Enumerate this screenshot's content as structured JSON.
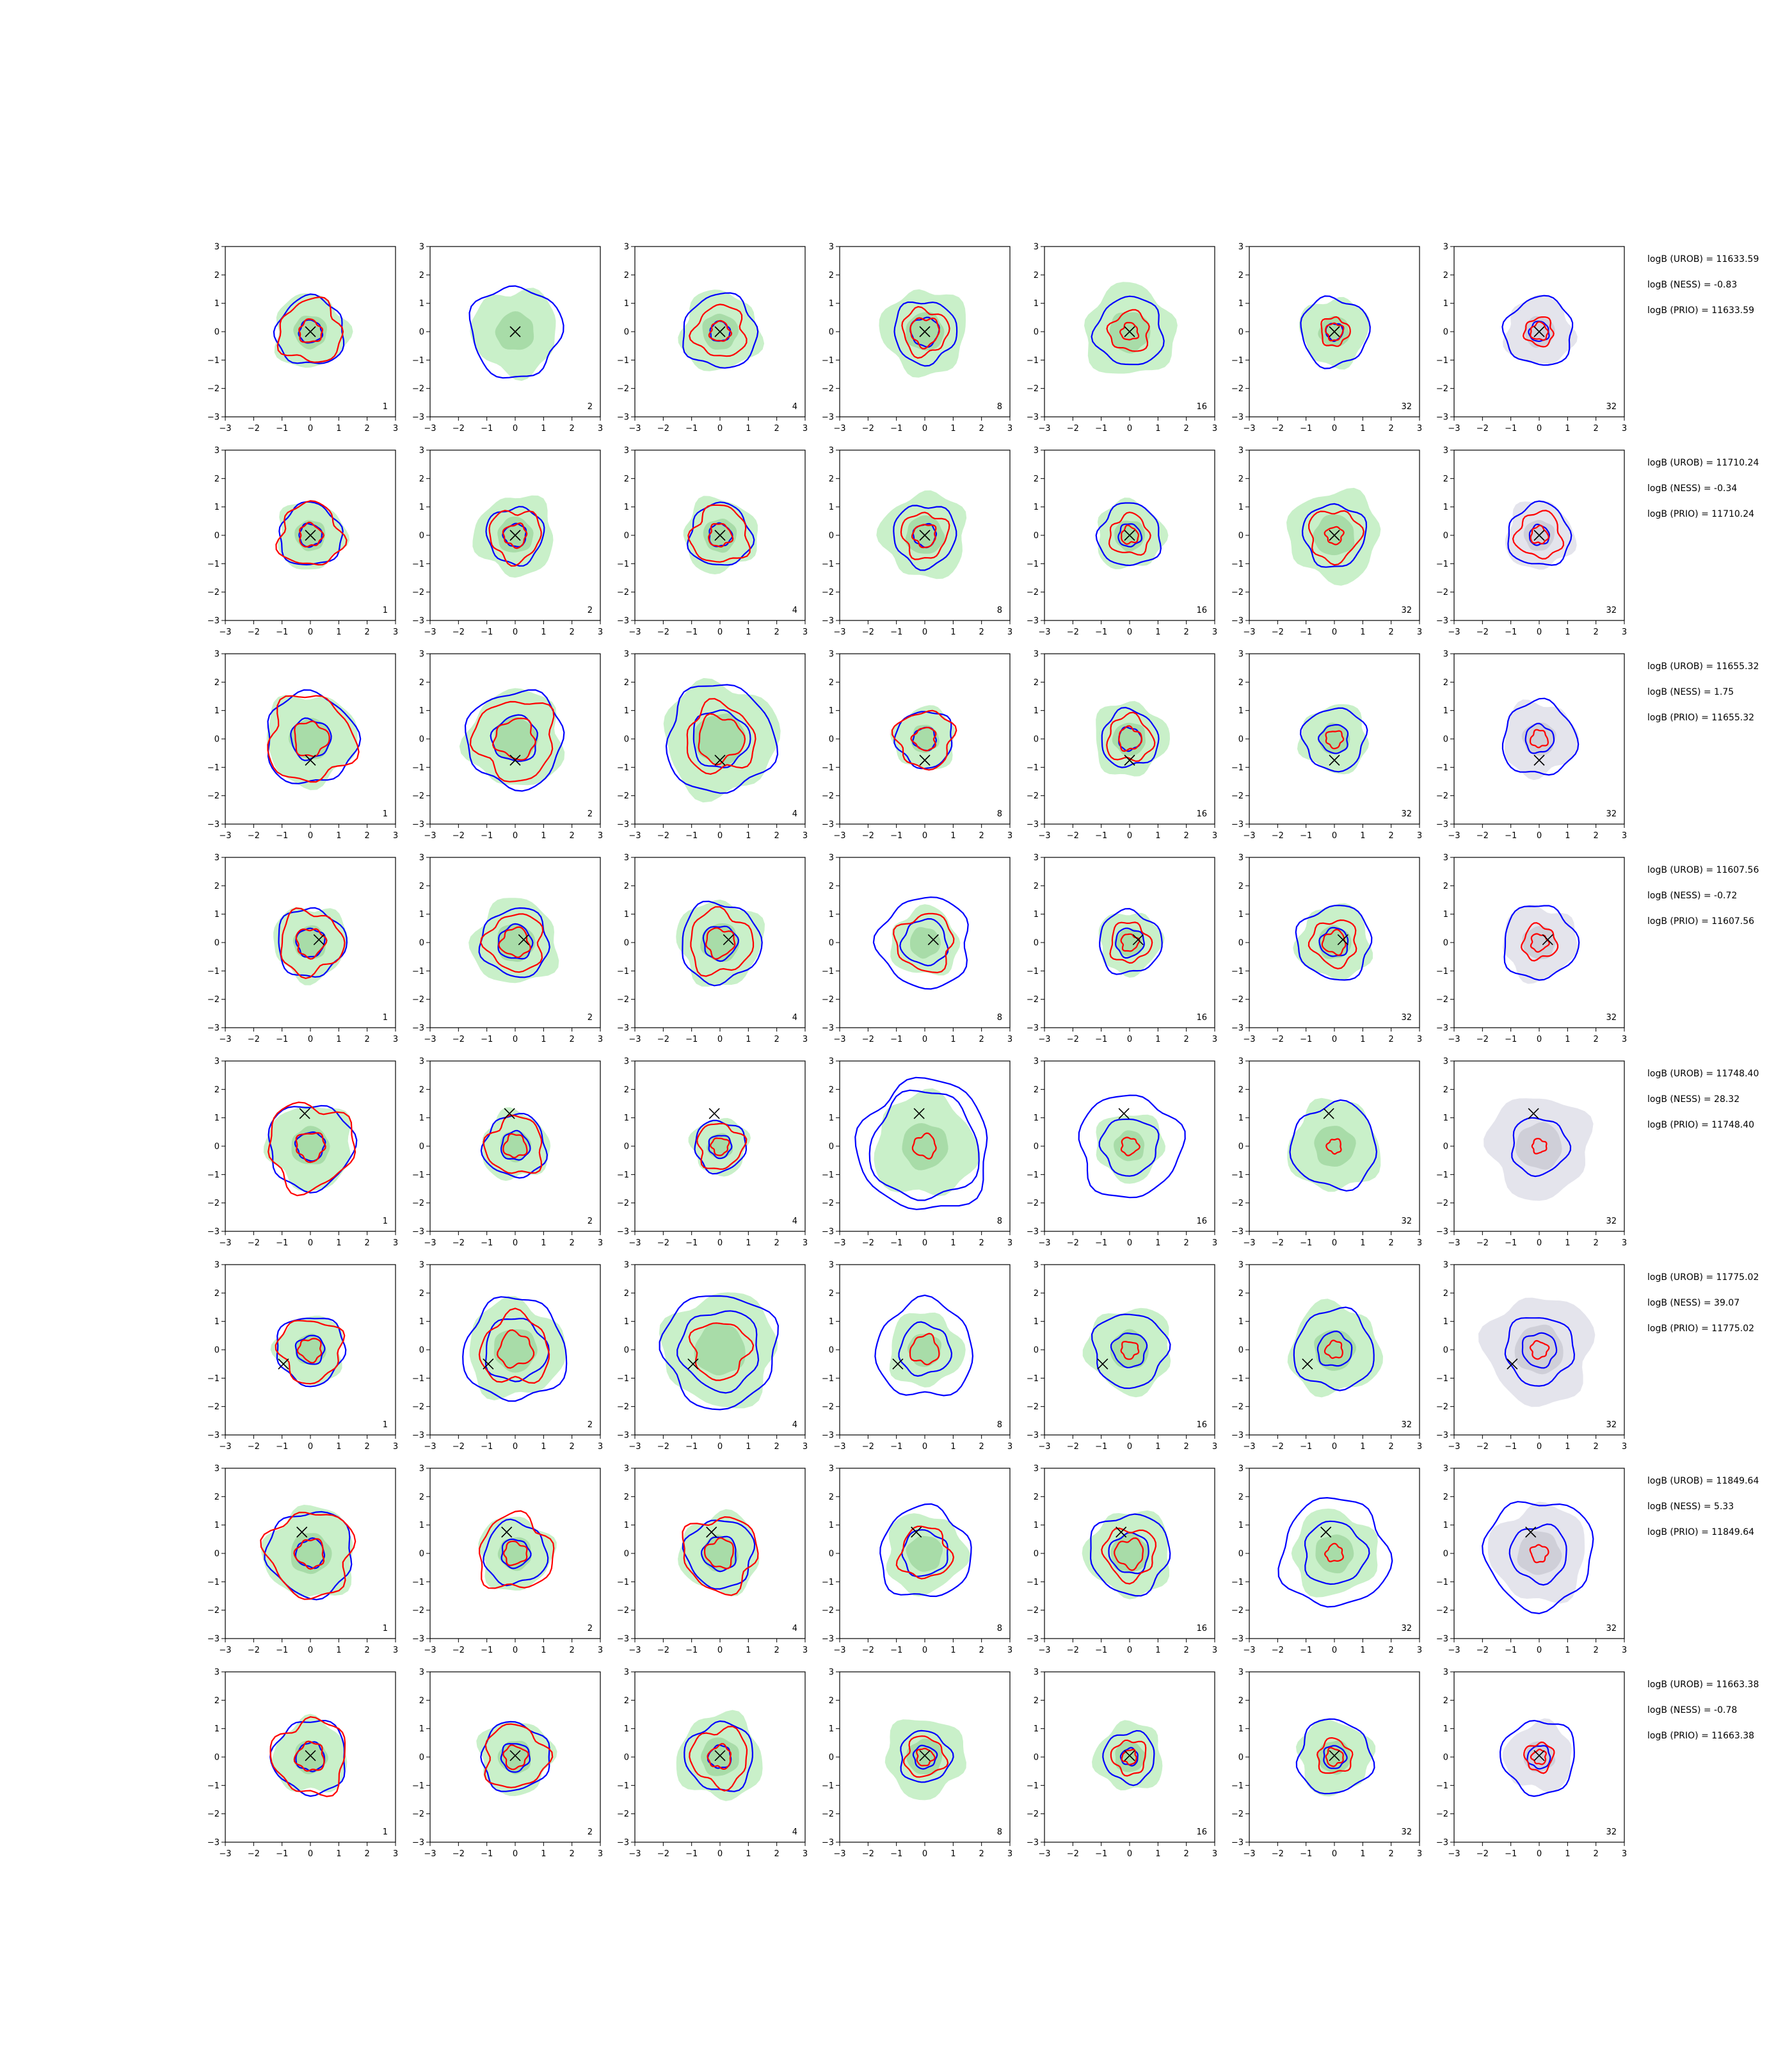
{
  "colors": {
    "background": "#ffffff",
    "axis": "#000000",
    "blue_contour": "#0000ff",
    "red_contour": "#ff0000",
    "green_fill": "#c9f0c9",
    "green_core": "#a8dca8",
    "grey_fill": "#e4e4ec",
    "grey_core": "#cfcfd8",
    "marker": "#000000"
  },
  "icons": {
    "marker": "x-marker-icon"
  },
  "chart_data": {
    "type": "contour-grid",
    "rows": 8,
    "cols": 7,
    "xlim": [
      -3,
      3
    ],
    "ylim": [
      -3,
      3
    ],
    "xticks": [
      "−3",
      "−2",
      "−1",
      "0",
      "1",
      "2",
      "3"
    ],
    "yticks": [
      "3",
      "2",
      "1",
      "0",
      "−1",
      "−2",
      "−3"
    ],
    "grid": false,
    "panel_labels": [
      "1",
      "2",
      "4",
      "8",
      "16",
      "32",
      "32"
    ],
    "last_column_fill": "grey",
    "row_annotations": [
      {
        "urob": "logB (UROB) = 11633.59",
        "ness": "logB (NESS) = -0.83",
        "prio": "logB (PRIO) = 11633.59"
      },
      {
        "urob": "logB (UROB) = 11710.24",
        "ness": "logB (NESS) = -0.34",
        "prio": "logB (PRIO) = 11710.24"
      },
      {
        "urob": "logB (UROB) = 11655.32",
        "ness": "logB (NESS) = 1.75",
        "prio": "logB (PRIO) = 11655.32"
      },
      {
        "urob": "logB (UROB) = 11607.56",
        "ness": "logB (NESS) = -0.72",
        "prio": "logB (PRIO) = 11607.56"
      },
      {
        "urob": "logB (UROB) = 11748.40",
        "ness": "logB (NESS) = 28.32",
        "prio": "logB (PRIO) = 11748.40"
      },
      {
        "urob": "logB (UROB) = 11775.02",
        "ness": "logB (NESS) = 39.07",
        "prio": "logB (PRIO) = 11775.02"
      },
      {
        "urob": "logB (UROB) = 11849.64",
        "ness": "logB (NESS) = 5.33",
        "prio": "logB (PRIO) = 11849.64"
      },
      {
        "urob": "logB (UROB) = 11663.38",
        "ness": "logB (NESS) = -0.78",
        "prio": "logB (PRIO) = 11663.38"
      }
    ],
    "row_markers": [
      {
        "x": 0.0,
        "y": 0.0
      },
      {
        "x": 0.0,
        "y": 0.0
      },
      {
        "x": 0.0,
        "y": -0.75
      },
      {
        "x": 0.3,
        "y": 0.1
      },
      {
        "x": -0.2,
        "y": 1.15
      },
      {
        "x": -0.95,
        "y": -0.5
      },
      {
        "x": -0.3,
        "y": 0.75
      },
      {
        "x": 0.0,
        "y": 0.05
      }
    ],
    "approx_contour_radii": [
      [
        {
          "green": 1.3,
          "blue": [
            1.2,
            0.4
          ],
          "red": [
            1.1,
            0.4
          ]
        },
        {
          "green": 1.5,
          "blue": [
            1.6
          ],
          "red": []
        },
        {
          "green": 1.4,
          "blue": [
            1.3,
            0.35
          ],
          "red": [
            0.9,
            0.35
          ]
        },
        {
          "green": 1.5,
          "blue": [
            1.1,
            0.5
          ],
          "red": [
            0.8,
            0.5
          ]
        },
        {
          "green": 1.6,
          "blue": [
            1.2
          ],
          "red": [
            0.7,
            0.3
          ]
        },
        {
          "green": 1.2,
          "blue": [
            1.2,
            0.3
          ],
          "red": [
            0.5,
            0.3
          ]
        },
        {
          "green": 1.2,
          "blue": [
            1.2,
            0.35
          ],
          "red": [
            0.5,
            0.3
          ]
        }
      ],
      [
        {
          "green": 1.2,
          "blue": [
            1.1,
            0.4
          ],
          "red": [
            1.1,
            0.4
          ]
        },
        {
          "green": 1.4,
          "blue": [
            1.0,
            0.4
          ],
          "red": [
            0.9,
            0.4
          ]
        },
        {
          "green": 1.3,
          "blue": [
            1.1,
            0.4
          ],
          "red": [
            1.0,
            0.4
          ]
        },
        {
          "green": 1.5,
          "blue": [
            1.1,
            0.4
          ],
          "red": [
            0.8,
            0.4
          ]
        },
        {
          "green": 1.2,
          "blue": [
            1.1,
            0.4
          ],
          "red": [
            0.7,
            0.3
          ]
        },
        {
          "green": 1.6,
          "blue": [
            1.1
          ],
          "red": [
            0.9,
            0.3
          ]
        },
        {
          "green": 1.2,
          "blue": [
            1.1,
            0.35
          ],
          "red": [
            0.8,
            0.3
          ]
        }
      ],
      [
        {
          "green": 1.6,
          "blue": [
            1.6,
            0.7
          ],
          "red": [
            1.5,
            0.6
          ]
        },
        {
          "green": 1.7,
          "blue": [
            1.7,
            0.8
          ],
          "red": [
            1.4,
            0.7
          ]
        },
        {
          "green": 2.0,
          "blue": [
            1.9,
            1.0
          ],
          "red": [
            1.2,
            0.8
          ]
        },
        {
          "green": 1.1,
          "blue": [
            1.0,
            0.4
          ],
          "red": [
            1.0,
            0.4
          ]
        },
        {
          "green": 1.3,
          "blue": [
            1.0,
            0.4
          ],
          "red": [
            0.8,
            0.4
          ]
        },
        {
          "green": 1.2,
          "blue": [
            1.1,
            0.5
          ],
          "red": [
            0.3
          ]
        },
        {
          "green": 1.3,
          "blue": [
            1.3,
            0.5
          ],
          "red": [
            0.3
          ]
        }
      ],
      [
        {
          "green": 1.3,
          "blue": [
            1.2,
            0.5
          ],
          "red": [
            1.1,
            0.5
          ]
        },
        {
          "green": 1.5,
          "blue": [
            1.2,
            0.6
          ],
          "red": [
            1.0,
            0.5
          ]
        },
        {
          "green": 1.5,
          "blue": [
            1.4,
            0.6
          ],
          "red": [
            1.1,
            0.5
          ]
        },
        {
          "green": 1.2,
          "blue": [
            1.6,
            0.8
          ],
          "red": [
            1.0
          ]
        },
        {
          "green": 1.1,
          "blue": [
            1.1,
            0.5
          ],
          "red": [
            0.7,
            0.3
          ]
        },
        {
          "green": 1.3,
          "blue": [
            1.3,
            0.5
          ],
          "red": [
            0.8,
            0.4
          ]
        },
        {
          "green": 1.3,
          "blue": [
            1.3
          ],
          "red": [
            0.6,
            0.3
          ]
        }
      ],
      [
        {
          "green": 1.5,
          "blue": [
            1.5,
            0.5
          ],
          "red": [
            1.5,
            0.5
          ]
        },
        {
          "green": 1.2,
          "blue": [
            1.1,
            0.5
          ],
          "red": [
            1.0,
            0.4
          ]
        },
        {
          "green": 1.0,
          "blue": [
            0.9,
            0.4
          ],
          "red": [
            0.8,
            0.3
          ]
        },
        {
          "green": 1.8,
          "blue": [
            2.3,
            1.9
          ],
          "red": [
            0.4
          ]
        },
        {
          "green": 1.2,
          "blue": [
            1.8,
            1.0
          ],
          "red": [
            0.3
          ]
        },
        {
          "green": 1.6,
          "blue": [
            1.5
          ],
          "red": [
            0.25
          ]
        },
        {
          "green": 1.8,
          "blue": [
            1.0
          ],
          "red": [
            0.25
          ]
        }
      ],
      [
        {
          "green": 1.2,
          "blue": [
            1.2,
            0.5
          ],
          "red": [
            1.1,
            0.4
          ]
        },
        {
          "green": 1.7,
          "blue": [
            1.8,
            1.1
          ],
          "red": [
            1.2,
            0.6
          ]
        },
        {
          "green": 2.0,
          "blue": [
            2.0,
            1.4
          ],
          "red": [
            1.0
          ]
        },
        {
          "green": 1.3,
          "blue": [
            1.7,
            0.9
          ],
          "red": [
            0.5
          ]
        },
        {
          "green": 1.5,
          "blue": [
            1.3,
            0.6
          ],
          "red": [
            0.3
          ]
        },
        {
          "green": 1.6,
          "blue": [
            1.4,
            0.6
          ],
          "red": [
            0.3
          ]
        },
        {
          "green": 1.9,
          "blue": [
            1.2,
            0.6
          ],
          "red": [
            0.3
          ]
        }
      ],
      [
        {
          "green": 1.6,
          "blue": [
            1.5,
            0.5
          ],
          "red": [
            1.5,
            0.5
          ]
        },
        {
          "green": 1.3,
          "blue": [
            1.1,
            0.5
          ],
          "red": [
            1.3,
            0.4
          ]
        },
        {
          "green": 1.4,
          "blue": [
            1.2,
            0.6
          ],
          "red": [
            1.3,
            0.5
          ]
        },
        {
          "green": 1.4,
          "blue": [
            1.6,
            0.8
          ],
          "red": [
            0.9
          ]
        },
        {
          "green": 1.5,
          "blue": [
            1.4,
            0.7
          ],
          "red": [
            0.9,
            0.5
          ]
        },
        {
          "green": 1.5,
          "blue": [
            1.9,
            1.1
          ],
          "red": [
            0.3
          ]
        },
        {
          "green": 1.7,
          "blue": [
            1.9,
            1.0
          ],
          "red": [
            0.3
          ]
        }
      ],
      [
        {
          "green": 1.3,
          "blue": [
            1.3,
            0.5
          ],
          "red": [
            1.3,
            0.5
          ]
        },
        {
          "green": 1.3,
          "blue": [
            1.2,
            0.5
          ],
          "red": [
            1.1,
            0.4
          ]
        },
        {
          "green": 1.5,
          "blue": [
            1.2,
            0.4
          ],
          "red": [
            1.0,
            0.4
          ]
        },
        {
          "green": 1.4,
          "blue": [
            0.9,
            0.4
          ],
          "red": [
            0.7,
            0.3
          ]
        },
        {
          "green": 1.2,
          "blue": [
            0.9,
            0.3
          ],
          "red": [
            0.6,
            0.25
          ]
        },
        {
          "green": 1.3,
          "blue": [
            1.3,
            0.4
          ],
          "red": [
            0.6,
            0.3
          ]
        },
        {
          "green": 1.2,
          "blue": [
            1.3,
            0.4
          ],
          "red": [
            0.5,
            0.25
          ]
        }
      ]
    ]
  }
}
